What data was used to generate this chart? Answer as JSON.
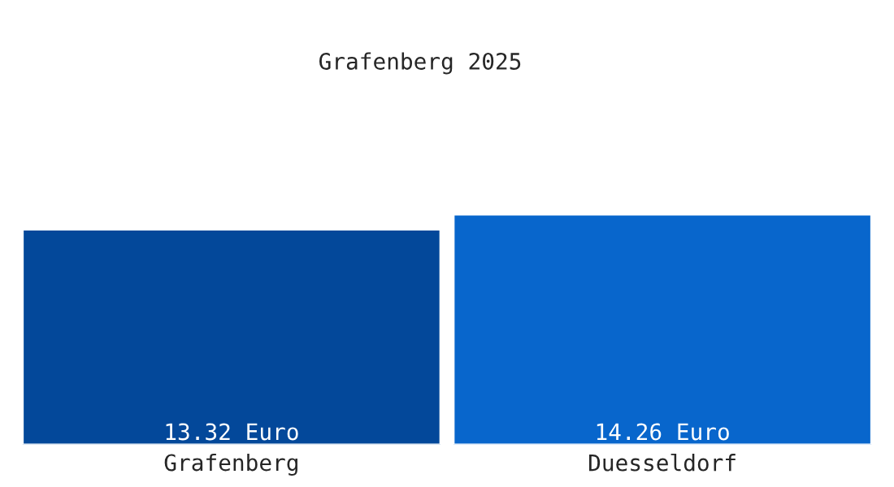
{
  "chart_data": {
    "type": "bar",
    "title": "Grafenberg 2025",
    "categories": [
      "Grafenberg",
      "Duesseldorf"
    ],
    "values": [
      13.32,
      14.26
    ],
    "value_labels": [
      "13.32 Euro",
      "14.26 Euro"
    ],
    "colors": [
      "#03489a",
      "#0866cc"
    ],
    "tick_labels": "x",
    "grid": false,
    "legend": false
  }
}
